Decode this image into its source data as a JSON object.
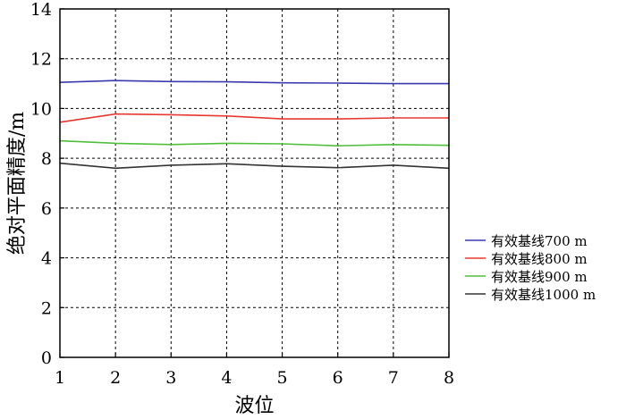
{
  "chart_data": {
    "type": "line",
    "title": "",
    "xlabel": "波位",
    "ylabel": "绝对平面精度/m",
    "x": [
      1,
      2,
      3,
      4,
      5,
      6,
      7,
      8
    ],
    "xlim": [
      1,
      8
    ],
    "ylim": [
      0,
      14
    ],
    "x_ticks": [
      1,
      2,
      3,
      4,
      5,
      6,
      7,
      8
    ],
    "y_ticks": [
      0,
      2,
      4,
      6,
      8,
      10,
      12,
      14
    ],
    "grid": true,
    "legend_position": "right",
    "series": [
      {
        "name": "有效基线700 m",
        "color": "#3a3ab0",
        "values": [
          11.05,
          11.12,
          11.08,
          11.07,
          11.03,
          11.02,
          11.0,
          11.0
        ]
      },
      {
        "name": "有效基线800 m",
        "color": "#e8382f",
        "values": [
          9.45,
          9.78,
          9.75,
          9.7,
          9.58,
          9.58,
          9.62,
          9.62
        ]
      },
      {
        "name": "有效基线900 m",
        "color": "#4fbf3a",
        "values": [
          8.7,
          8.6,
          8.55,
          8.6,
          8.58,
          8.5,
          8.55,
          8.52
        ]
      },
      {
        "name": "有效基线1000 m",
        "color": "#333333",
        "values": [
          7.8,
          7.6,
          7.72,
          7.78,
          7.68,
          7.62,
          7.72,
          7.6
        ]
      }
    ]
  }
}
